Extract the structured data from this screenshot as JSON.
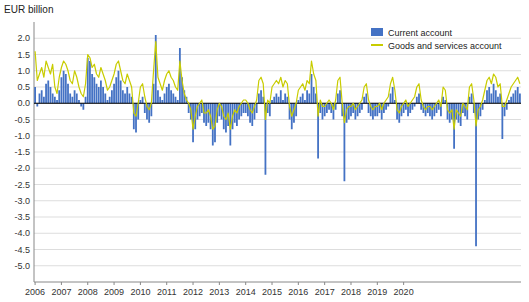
{
  "chart_data": {
    "type": "bar",
    "ylabel": "EUR billion",
    "categories": [
      "2006",
      null,
      null,
      null,
      null,
      null,
      null,
      null,
      null,
      null,
      null,
      null,
      "2007",
      null,
      null,
      null,
      null,
      null,
      null,
      null,
      null,
      null,
      null,
      null,
      "2008",
      null,
      null,
      null,
      null,
      null,
      null,
      null,
      null,
      null,
      null,
      null,
      "2009",
      null,
      null,
      null,
      null,
      null,
      null,
      null,
      null,
      null,
      null,
      null,
      "2010",
      null,
      null,
      null,
      null,
      null,
      null,
      null,
      null,
      null,
      null,
      null,
      "2011",
      null,
      null,
      null,
      null,
      null,
      null,
      null,
      null,
      null,
      null,
      null,
      "2012",
      null,
      null,
      null,
      null,
      null,
      null,
      null,
      null,
      null,
      null,
      null,
      "2013",
      null,
      null,
      null,
      null,
      null,
      null,
      null,
      null,
      null,
      null,
      null,
      "2014",
      null,
      null,
      null,
      null,
      null,
      null,
      null,
      null,
      null,
      null,
      null,
      "2015",
      null,
      null,
      null,
      null,
      null,
      null,
      null,
      null,
      null,
      null,
      null,
      "2016",
      null,
      null,
      null,
      null,
      null,
      null,
      null,
      null,
      null,
      null,
      null,
      "2017",
      null,
      null,
      null,
      null,
      null,
      null,
      null,
      null,
      null,
      null,
      null,
      "2018",
      null,
      null,
      null,
      null,
      null,
      null,
      null,
      null,
      null,
      null,
      null,
      "2019",
      null,
      null,
      null,
      null,
      null,
      null,
      null,
      null,
      null,
      null,
      null,
      "2020",
      null,
      null,
      null,
      null,
      null,
      null,
      null,
      null,
      null,
      null,
      null,
      null,
      null,
      null,
      null,
      null,
      null,
      null,
      null,
      null,
      null,
      null,
      null,
      null,
      null,
      null,
      null,
      null,
      null,
      null,
      null,
      null,
      null,
      null,
      null,
      null,
      null,
      null,
      null,
      null,
      null,
      null,
      null,
      null,
      null,
      null,
      null,
      null,
      null,
      null,
      null,
      null,
      null
    ],
    "series": [
      {
        "name": "Current account",
        "type": "bar",
        "color": "#4472C4",
        "values": [
          0.5,
          -0.1,
          0.3,
          0.4,
          0.2,
          0.6,
          0.7,
          0.5,
          0.3,
          0.2,
          0.1,
          0.4,
          0.8,
          1.0,
          0.9,
          0.6,
          0.3,
          0.2,
          0.4,
          0.3,
          0.1,
          -0.1,
          -0.2,
          0.2,
          1.4,
          1.3,
          0.9,
          0.8,
          0.6,
          0.5,
          0.7,
          0.5,
          0.3,
          0.1,
          0.2,
          0.4,
          0.6,
          0.8,
          1.0,
          0.7,
          0.4,
          0.3,
          0.5,
          0.3,
          0.2,
          -0.8,
          -0.9,
          -0.5,
          0.1,
          0.2,
          -0.3,
          -0.5,
          -0.6,
          -0.4,
          0.6,
          2.1,
          0.4,
          0.2,
          0.1,
          0.3,
          0.5,
          0.6,
          0.4,
          0.3,
          0.2,
          0.1,
          1.7,
          0.8,
          0.4,
          0.2,
          -0.3,
          -0.5,
          -1.2,
          -0.8,
          -0.5,
          -0.4,
          -0.3,
          -0.6,
          -0.7,
          -0.6,
          -0.8,
          -1.3,
          -1.2,
          -0.6,
          -0.4,
          -0.5,
          -0.8,
          -0.9,
          -0.7,
          -1.3,
          -0.8,
          -0.6,
          -0.7,
          -0.5,
          -0.4,
          -0.3,
          -0.3,
          -0.4,
          -0.6,
          -0.7,
          -0.5,
          -0.3,
          0.3,
          0.4,
          0.2,
          -2.2,
          -0.3,
          -0.4,
          0.1,
          0.2,
          0.3,
          0.2,
          0.4,
          0.1,
          0.3,
          0.2,
          -0.5,
          -0.8,
          -0.6,
          -0.4,
          0.1,
          0.2,
          0.3,
          0.1,
          0.4,
          0.3,
          0.9,
          0.5,
          0.3,
          -1.7,
          -0.3,
          -0.5,
          -0.4,
          -0.3,
          -0.2,
          -0.3,
          -0.5,
          -0.2,
          0.3,
          0.4,
          -0.4,
          -2.4,
          -0.6,
          -0.5,
          -0.4,
          -0.3,
          -0.5,
          -0.4,
          -0.3,
          -0.2,
          0.2,
          0.3,
          -0.3,
          -0.4,
          -0.5,
          -0.4,
          -0.4,
          -0.3,
          -0.5,
          -0.3,
          -0.2,
          -0.1,
          0.3,
          0.5,
          0.1,
          -0.5,
          -0.6,
          -0.4,
          -0.3,
          -0.2,
          -0.4,
          -0.3,
          -0.2,
          -0.1,
          0.2,
          0.3,
          -0.2,
          -0.3,
          -0.4,
          -0.3,
          -0.4,
          -0.5,
          -0.4,
          -0.3,
          -0.2,
          -0.4,
          0.2,
          0.1,
          -0.5,
          -0.6,
          -0.5,
          -1.4,
          -0.5,
          -0.6,
          -0.7,
          -0.3,
          -0.4,
          -0.5,
          0.2,
          0.3,
          -0.3,
          -4.4,
          -0.5,
          -0.4,
          -0.2,
          0.1,
          0.4,
          0.5,
          0.3,
          0.6,
          0.4,
          0.2,
          0.3,
          -1.1,
          -0.4,
          -0.2,
          0.1,
          0.2,
          0.3,
          0.4,
          0.5,
          0.3
        ]
      },
      {
        "name": "Goods and services account",
        "type": "line",
        "color": "#c8cc00",
        "values": [
          1.6,
          0.7,
          0.9,
          1.1,
          0.8,
          1.3,
          1.1,
          0.9,
          1.2,
          0.5,
          0.3,
          0.8,
          1.1,
          1.3,
          1.2,
          1.0,
          0.7,
          0.6,
          1.0,
          0.8,
          0.5,
          0.3,
          0.2,
          0.6,
          1.5,
          1.4,
          1.1,
          1.2,
          0.9,
          0.8,
          1.1,
          0.9,
          0.7,
          0.4,
          0.5,
          0.7,
          0.9,
          1.2,
          1.3,
          1.0,
          0.7,
          0.6,
          0.9,
          0.7,
          0.5,
          -0.3,
          -0.4,
          0.0,
          0.5,
          0.6,
          0.2,
          -0.1,
          -0.2,
          0.0,
          1.0,
          1.9,
          0.8,
          0.6,
          0.4,
          0.7,
          0.9,
          1.0,
          0.8,
          0.7,
          0.5,
          0.4,
          1.3,
          0.7,
          0.3,
          0.1,
          0.0,
          -0.2,
          -0.8,
          -0.4,
          -0.1,
          0.0,
          0.1,
          -0.3,
          -0.3,
          -0.2,
          -0.4,
          -0.8,
          -0.7,
          -0.2,
          0.0,
          -0.1,
          -0.4,
          -0.5,
          -0.3,
          -0.8,
          -0.4,
          -0.2,
          -0.3,
          -0.1,
          0.0,
          0.1,
          0.1,
          0.0,
          -0.2,
          -0.3,
          -0.1,
          0.1,
          0.7,
          0.8,
          0.6,
          -0.5,
          0.1,
          0.0,
          0.5,
          0.6,
          0.7,
          0.6,
          0.8,
          0.5,
          0.7,
          0.6,
          -0.1,
          -0.4,
          -0.2,
          0.0,
          0.4,
          0.5,
          0.6,
          0.4,
          0.7,
          0.6,
          1.3,
          0.9,
          0.7,
          -0.4,
          0.1,
          -0.1,
          -0.1,
          0.0,
          0.1,
          0.0,
          -0.2,
          0.1,
          0.7,
          0.8,
          0.0,
          -0.6,
          -0.2,
          -0.1,
          -0.1,
          0.0,
          -0.2,
          -0.1,
          0.0,
          0.1,
          0.5,
          0.6,
          0.1,
          -0.1,
          -0.2,
          -0.1,
          -0.1,
          0.0,
          -0.2,
          0.0,
          0.1,
          0.2,
          0.6,
          0.8,
          0.4,
          -0.2,
          -0.3,
          -0.1,
          0.0,
          0.1,
          -0.1,
          0.0,
          0.1,
          0.2,
          0.5,
          0.6,
          0.1,
          -0.1,
          -0.2,
          -0.1,
          -0.1,
          -0.2,
          -0.1,
          0.0,
          0.1,
          -0.1,
          0.5,
          0.4,
          -0.2,
          -0.3,
          -0.2,
          -0.8,
          -0.2,
          -0.3,
          -0.4,
          0.0,
          -0.1,
          -0.2,
          0.5,
          0.6,
          0.1,
          -0.7,
          -0.2,
          -0.1,
          0.1,
          0.4,
          0.7,
          0.8,
          0.6,
          0.9,
          0.8,
          0.5,
          0.6,
          -0.1,
          -0.1,
          0.1,
          0.3,
          0.5,
          0.6,
          0.7,
          0.8,
          0.6
        ]
      }
    ],
    "ylim": [
      -5.5,
      2.5
    ],
    "yticks": [
      {
        "value": -5,
        "label": "-5.0"
      },
      -4.5,
      {
        "value": -4,
        "label": "-4.0"
      },
      -3.5,
      {
        "value": -3,
        "label": "-3.0"
      },
      -2.5,
      {
        "value": -2,
        "label": "-2.0"
      },
      -1.5,
      {
        "value": -1,
        "label": "-1.0"
      },
      -0.5,
      {
        "value": 0,
        "label": "0.0"
      },
      0.5,
      {
        "value": 1,
        "label": "1.0"
      },
      1.5,
      {
        "value": 2,
        "label": "2.0"
      }
    ],
    "grid": true,
    "legend": "upper right"
  }
}
